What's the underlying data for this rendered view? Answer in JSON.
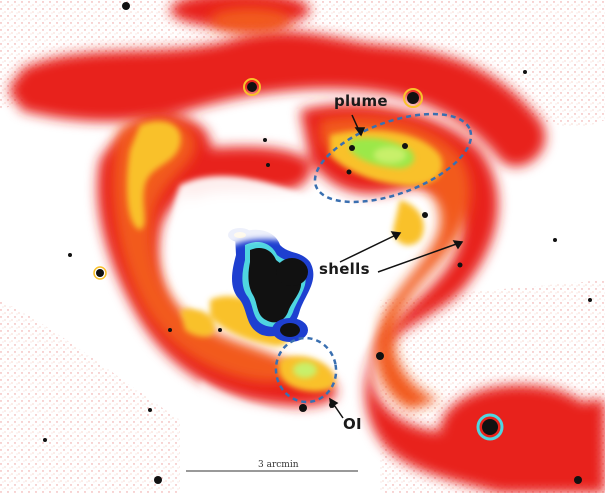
{
  "figure": {
    "labels": {
      "plume": "plume",
      "shells": "shells",
      "oi": "OI"
    },
    "scale_bar_label": "3 arcmin"
  },
  "colors": {
    "background": "#ffffff",
    "outer_halo": "#e8231f",
    "mid_emission": "#f25a1c",
    "bright_emission": "#f9c12a",
    "peak_emission": "#9be84a",
    "saturated_core": "#111111",
    "contour_blue": "#1e3fd0",
    "ellipse_dash": "#3a6fb0",
    "arrow": "#111111"
  }
}
